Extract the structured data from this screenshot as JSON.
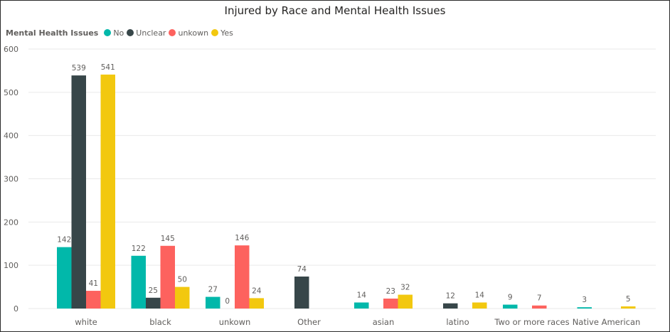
{
  "chart_data": {
    "type": "bar",
    "title": "Injured by Race and Mental Health Issues",
    "legend_title": "Mental Health Issues",
    "legend_position": "top-left",
    "categories": [
      "white",
      "black",
      "unkown",
      "Other",
      "asian",
      "latino",
      "Two or more races",
      "Native American"
    ],
    "series": [
      {
        "name": "No",
        "color": "#01B8AA",
        "values": [
          142,
          122,
          27,
          null,
          14,
          null,
          9,
          3
        ]
      },
      {
        "name": "Unclear",
        "color": "#374649",
        "values": [
          539,
          25,
          0,
          74,
          null,
          12,
          null,
          null
        ]
      },
      {
        "name": "unkown",
        "color": "#FD625E",
        "values": [
          41,
          145,
          146,
          null,
          23,
          null,
          7,
          null
        ]
      },
      {
        "name": "Yes",
        "color": "#F2C80F",
        "values": [
          541,
          50,
          24,
          null,
          32,
          14,
          null,
          5
        ]
      }
    ],
    "ylim": [
      0,
      600
    ],
    "yticks": [
      0,
      100,
      200,
      300,
      400,
      500,
      600
    ],
    "grid": true,
    "xlabel": "",
    "ylabel": ""
  }
}
